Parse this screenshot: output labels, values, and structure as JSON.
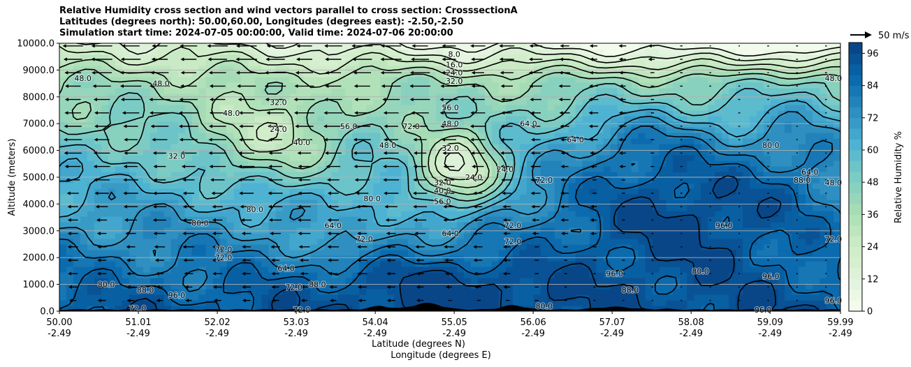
{
  "title": {
    "line1": "Relative Humidity cross section and wind vectors parallel to cross section: CrosssectionA",
    "line2": "Latitudes (degrees north): 50.00,60.00, Longitudes (degrees east): -2.50,-2.50",
    "line3": "Simulation start time: 2024-07-05 00:00:00, Valid time: 2024-07-06 20:00:00"
  },
  "chart_data": {
    "type": "heatmap",
    "ylabel": "Altitude (meters)",
    "xlabel_lat": "Latitude (degrees N)",
    "xlabel_lon": "Longitude (degrees E)",
    "ylim": [
      0,
      10000
    ],
    "xlim": [
      50.0,
      59.99
    ],
    "y_ticks": [
      "0.0",
      "1000.0",
      "2000.0",
      "3000.0",
      "4000.0",
      "5000.0",
      "6000.0",
      "7000.0",
      "8000.0",
      "9000.0",
      "10000.0"
    ],
    "x_ticks": [
      {
        "lat": "50.00",
        "lon": "-2.49"
      },
      {
        "lat": "51.01",
        "lon": "-2.49"
      },
      {
        "lat": "52.02",
        "lon": "-2.49"
      },
      {
        "lat": "53.03",
        "lon": "-2.49"
      },
      {
        "lat": "54.04",
        "lon": "-2.49"
      },
      {
        "lat": "55.05",
        "lon": "-2.49"
      },
      {
        "lat": "56.06",
        "lon": "-2.49"
      },
      {
        "lat": "57.07",
        "lon": "-2.49"
      },
      {
        "lat": "58.08",
        "lon": "-2.49"
      },
      {
        "lat": "59.09",
        "lon": "-2.49"
      },
      {
        "lat": "59.99",
        "lon": "-2.49"
      }
    ],
    "colorbar": {
      "label": "Relative Humidity %",
      "min": 0,
      "max": 100,
      "step": 4,
      "ticks": [
        "0",
        "12",
        "24",
        "36",
        "48",
        "60",
        "72",
        "84",
        "96"
      ]
    },
    "wind_key": "50 m/s",
    "horizontal_grid": true,
    "contour_labels": [
      {
        "text": "8.0",
        "lat": 55.05,
        "alt": 9600
      },
      {
        "text": "16.0",
        "lat": 55.05,
        "alt": 9200
      },
      {
        "text": "24.0",
        "lat": 55.05,
        "alt": 8900
      },
      {
        "text": "32.0",
        "lat": 55.05,
        "alt": 8600
      },
      {
        "text": "48.0",
        "lat": 50.3,
        "alt": 8700
      },
      {
        "text": "48.0",
        "lat": 51.3,
        "alt": 8500
      },
      {
        "text": "48.0",
        "lat": 52.2,
        "alt": 7400
      },
      {
        "text": "32.0",
        "lat": 52.8,
        "alt": 7800
      },
      {
        "text": "32.0",
        "lat": 51.5,
        "alt": 5800
      },
      {
        "text": "24.0",
        "lat": 52.8,
        "alt": 6800
      },
      {
        "text": "40.0",
        "lat": 53.1,
        "alt": 6300
      },
      {
        "text": "56.0",
        "lat": 53.7,
        "alt": 6900
      },
      {
        "text": "48.0",
        "lat": 54.2,
        "alt": 6200
      },
      {
        "text": "56.0",
        "lat": 55.0,
        "alt": 7600
      },
      {
        "text": "48.0",
        "lat": 55.0,
        "alt": 7000
      },
      {
        "text": "32.0",
        "lat": 55.0,
        "alt": 6100
      },
      {
        "text": "24.0",
        "lat": 55.3,
        "alt": 5000
      },
      {
        "text": "32.0",
        "lat": 54.9,
        "alt": 4800
      },
      {
        "text": "40.0",
        "lat": 54.9,
        "alt": 4500
      },
      {
        "text": "56.0",
        "lat": 54.9,
        "alt": 4100
      },
      {
        "text": "24.0",
        "lat": 55.7,
        "alt": 5300
      },
      {
        "text": "72.0",
        "lat": 54.5,
        "alt": 6900
      },
      {
        "text": "64.0",
        "lat": 56.0,
        "alt": 7000
      },
      {
        "text": "64.0",
        "lat": 56.6,
        "alt": 6400
      },
      {
        "text": "72.0",
        "lat": 56.2,
        "alt": 4900
      },
      {
        "text": "80.0",
        "lat": 54.0,
        "alt": 4200
      },
      {
        "text": "64.0",
        "lat": 53.5,
        "alt": 3200
      },
      {
        "text": "72.0",
        "lat": 53.9,
        "alt": 2700
      },
      {
        "text": "64.0",
        "lat": 55.0,
        "alt": 2900
      },
      {
        "text": "72.0",
        "lat": 55.8,
        "alt": 3200
      },
      {
        "text": "72.0",
        "lat": 55.8,
        "alt": 2600
      },
      {
        "text": "80.0",
        "lat": 51.8,
        "alt": 3300
      },
      {
        "text": "80.0",
        "lat": 52.5,
        "alt": 3800
      },
      {
        "text": "72.0",
        "lat": 52.1,
        "alt": 2300
      },
      {
        "text": "72.0",
        "lat": 52.1,
        "alt": 2000
      },
      {
        "text": "64.0",
        "lat": 52.9,
        "alt": 1600
      },
      {
        "text": "72.0",
        "lat": 53.0,
        "alt": 900
      },
      {
        "text": "88.0",
        "lat": 53.3,
        "alt": 1000
      },
      {
        "text": "96.0",
        "lat": 51.5,
        "alt": 600
      },
      {
        "text": "80.0",
        "lat": 50.6,
        "alt": 1000
      },
      {
        "text": "88.0",
        "lat": 51.1,
        "alt": 800
      },
      {
        "text": "96.0",
        "lat": 57.1,
        "alt": 1400
      },
      {
        "text": "88.0",
        "lat": 57.3,
        "alt": 800
      },
      {
        "text": "80.0",
        "lat": 58.2,
        "alt": 1500
      },
      {
        "text": "96.0",
        "lat": 59.1,
        "alt": 1300
      },
      {
        "text": "80.0",
        "lat": 59.1,
        "alt": 6200
      },
      {
        "text": "88.0",
        "lat": 59.5,
        "alt": 4900
      },
      {
        "text": "64.0",
        "lat": 59.6,
        "alt": 5200
      },
      {
        "text": "48.0",
        "lat": 59.9,
        "alt": 4800
      },
      {
        "text": "48.0",
        "lat": 59.9,
        "alt": 8700
      },
      {
        "text": "72.0",
        "lat": 59.9,
        "alt": 2700
      },
      {
        "text": "96.0",
        "lat": 59.9,
        "alt": 400
      },
      {
        "text": "96.0",
        "lat": 58.5,
        "alt": 3200
      },
      {
        "text": "80.0",
        "lat": 56.2,
        "alt": 200
      },
      {
        "text": "72.0",
        "lat": 51.0,
        "alt": 100
      },
      {
        "text": "72.0",
        "lat": 53.1,
        "alt": 50
      },
      {
        "text": "96.0",
        "lat": 59.0,
        "alt": 50
      }
    ]
  }
}
